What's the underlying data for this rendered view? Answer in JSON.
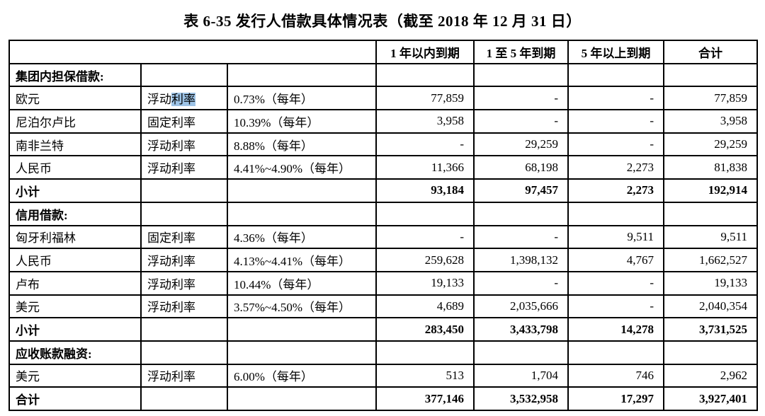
{
  "title": "表 6-35  发行人借款具体情况表（截至 2018 年 12 月 31 日）",
  "colors": {
    "highlight": "#9dc3e6",
    "border": "#000000",
    "text": "#000000",
    "background": "#ffffff"
  },
  "table": {
    "header": {
      "cells": [
        "",
        "1 年以内到期",
        "1 至 5 年到期",
        "5 年以上到期",
        "合计"
      ]
    },
    "rows": [
      {
        "style": "section",
        "cells": [
          "集团内担保借款:",
          "",
          "",
          "",
          "",
          "",
          ""
        ]
      },
      {
        "style": "data",
        "cells": [
          "欧元",
          "浮动利率",
          "0.73%（每年）",
          "77,859",
          "-",
          "-",
          "77,859"
        ],
        "highlight": {
          "cell": 1,
          "pre": "浮动",
          "term": "利率"
        }
      },
      {
        "style": "data",
        "cells": [
          "尼泊尔卢比",
          "固定利率",
          "10.39%（每年）",
          "3,958",
          "-",
          "-",
          "3,958"
        ]
      },
      {
        "style": "data",
        "cells": [
          "南非兰特",
          "浮动利率",
          "8.88%（每年）",
          "-",
          "29,259",
          "-",
          "29,259"
        ]
      },
      {
        "style": "data",
        "cells": [
          "人民币",
          "浮动利率",
          "4.41%~4.90%（每年）",
          "11,366",
          "68,198",
          "2,273",
          "81,838"
        ]
      },
      {
        "style": "subtotal",
        "cells": [
          "小计",
          "",
          "",
          "93,184",
          "97,457",
          "2,273",
          "192,914"
        ]
      },
      {
        "style": "section",
        "cells": [
          "信用借款:",
          "",
          "",
          "",
          "",
          "",
          ""
        ]
      },
      {
        "style": "data",
        "cells": [
          "匈牙利福林",
          "固定利率",
          "4.36%（每年）",
          "-",
          "-",
          "9,511",
          "9,511"
        ]
      },
      {
        "style": "data",
        "cells": [
          "人民币",
          "浮动利率",
          "4.13%~4.41%（每年）",
          "259,628",
          "1,398,132",
          "4,767",
          "1,662,527"
        ]
      },
      {
        "style": "data",
        "cells": [
          "卢布",
          "浮动利率",
          "10.44%（每年）",
          "19,133",
          "-",
          "-",
          "19,133"
        ]
      },
      {
        "style": "data",
        "cells": [
          "美元",
          "浮动利率",
          "3.57%~4.50%（每年）",
          "4,689",
          "2,035,666",
          "-",
          "2,040,354"
        ]
      },
      {
        "style": "subtotal",
        "cells": [
          "小计",
          "",
          "",
          "283,450",
          "3,433,798",
          "14,278",
          "3,731,525"
        ]
      },
      {
        "style": "section",
        "cells": [
          "应收账款融资:",
          "",
          "",
          "",
          "",
          "",
          ""
        ]
      },
      {
        "style": "data",
        "cells": [
          "美元",
          "浮动利率",
          "6.00%（每年）",
          "513",
          "1,704",
          "746",
          "2,962"
        ]
      },
      {
        "style": "total",
        "cells": [
          "合计",
          "",
          "",
          "377,146",
          "3,532,958",
          "17,297",
          "3,927,401"
        ]
      }
    ]
  }
}
